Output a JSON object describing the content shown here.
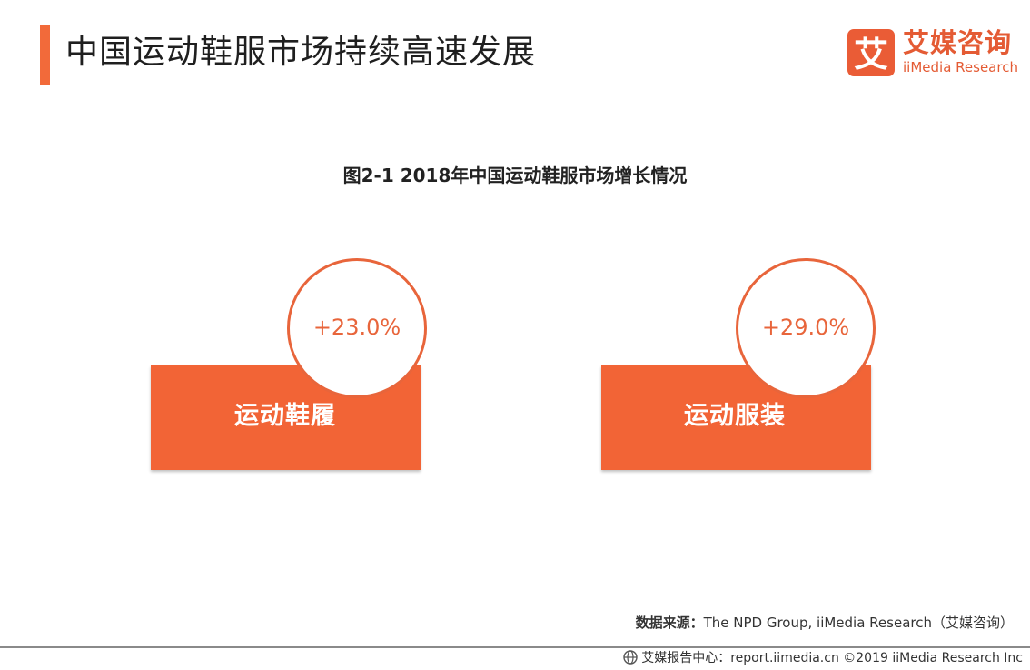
{
  "header": {
    "title": "中国运动鞋服市场持续高速发展",
    "accent_color": "#f26a3a"
  },
  "logo": {
    "mark_text": "艾",
    "name_cn": "艾媒咨询",
    "name_en": "iiMedia Research",
    "brand_color": "#e45b34"
  },
  "chart_data": {
    "type": "table",
    "title": "图2-1 2018年中国运动鞋服市场增长情况",
    "categories": [
      "运动鞋履",
      "运动服装"
    ],
    "values": [
      "+23.0%",
      "+29.0%"
    ],
    "growth_percent": [
      23.0,
      29.0
    ],
    "colors": {
      "card": "#f26436",
      "ring": "#e8653b",
      "value_text": "#e8653b"
    }
  },
  "source": {
    "label": "数据来源：",
    "text": "The  NPD Group, iiMedia Research（艾媒咨询）"
  },
  "footer": {
    "text": "艾媒报告中心：report.iimedia.cn  ©2019  iiMedia Research  Inc",
    "icon": "globe-icon"
  }
}
